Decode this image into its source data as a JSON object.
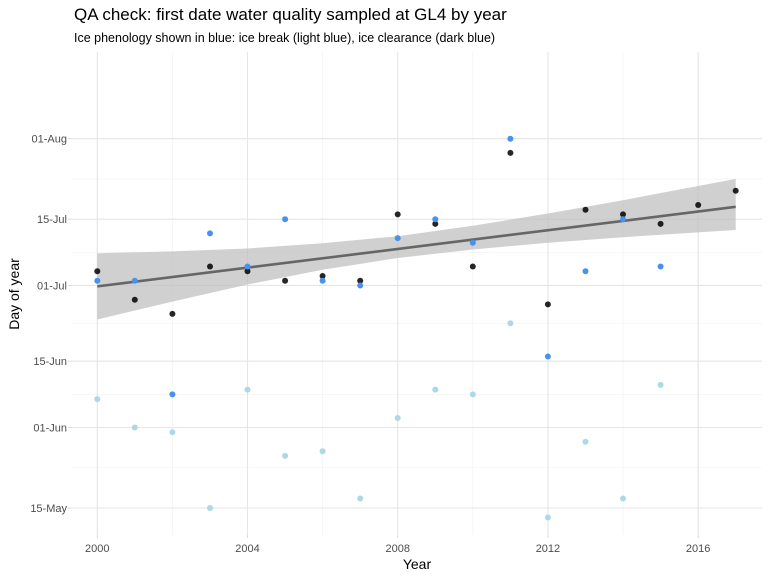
{
  "chart_data": {
    "type": "scatter",
    "title": "QA check: first date water quality sampled at GL4 by year",
    "subtitle": "Ice phenology shown in blue: ice break (light blue), ice clearance (dark blue)",
    "xlabel": "Year",
    "ylabel": "Day of year",
    "xlim": [
      1999.3,
      2017.7
    ],
    "ylim": [
      129.3,
      231.3
    ],
    "x_ticks": [
      2000,
      2004,
      2008,
      2012,
      2016
    ],
    "x_tick_labels": [
      "2000",
      "2004",
      "2008",
      "2012",
      "2016"
    ],
    "y_ticks": [
      135,
      152,
      166,
      182,
      196,
      213
    ],
    "y_tick_labels": [
      "15-May",
      "01-Jun",
      "15-Jun",
      "01-Jul",
      "15-Jul",
      "01-Aug"
    ],
    "grid": true,
    "colors": {
      "sampled": "#000000",
      "ice_break": "#add8e6",
      "ice_clearance": "#4792f0",
      "trend_line": "#666666",
      "confidence_band": "#bebebe"
    },
    "series": [
      {
        "key": "sampled",
        "x": [
          2000,
          2001,
          2002,
          2003,
          2004,
          2005,
          2006,
          2007,
          2008,
          2009,
          2010,
          2011,
          2012,
          2013,
          2014,
          2015,
          2016,
          2017
        ],
        "y": [
          185,
          179,
          176,
          186,
          185,
          183,
          184,
          183,
          197,
          195,
          186,
          210,
          178,
          198,
          197,
          195,
          199,
          202
        ]
      },
      {
        "key": "ice_clearance",
        "x": [
          2000,
          2001,
          2002,
          2003,
          2004,
          2005,
          2006,
          2007,
          2008,
          2009,
          2010,
          2011,
          2012,
          2013,
          2014,
          2015
        ],
        "y": [
          183,
          183,
          159,
          193,
          186,
          196,
          183,
          182,
          192,
          196,
          191,
          213,
          167,
          185,
          196,
          186
        ]
      },
      {
        "key": "ice_break",
        "x": [
          2000,
          2001,
          2002,
          2003,
          2004,
          2005,
          2006,
          2007,
          2008,
          2009,
          2010,
          2011,
          2012,
          2013,
          2014,
          2015
        ],
        "y": [
          158,
          152,
          151,
          135,
          160,
          146,
          147,
          137,
          154,
          160,
          159,
          174,
          133,
          149,
          137,
          161
        ]
      }
    ],
    "trend": {
      "x_start": 2000,
      "y_start": 181.8,
      "x_end": 2017,
      "y_end": 198.6,
      "band": [
        {
          "x": 2000,
          "lo": 174.8,
          "hi": 188.8
        },
        {
          "x": 2002,
          "lo": 178.6,
          "hi": 189.2
        },
        {
          "x": 2004,
          "lo": 182.2,
          "hi": 189.8
        },
        {
          "x": 2006,
          "lo": 185.3,
          "hi": 190.9
        },
        {
          "x": 2008,
          "lo": 187.8,
          "hi": 192.4
        },
        {
          "x": 2010,
          "lo": 189.6,
          "hi": 194.6
        },
        {
          "x": 2012,
          "lo": 191.0,
          "hi": 197.2
        },
        {
          "x": 2014,
          "lo": 192.2,
          "hi": 200.0
        },
        {
          "x": 2016,
          "lo": 193.2,
          "hi": 203.0
        },
        {
          "x": 2017,
          "lo": 193.7,
          "hi": 204.5
        }
      ]
    }
  }
}
